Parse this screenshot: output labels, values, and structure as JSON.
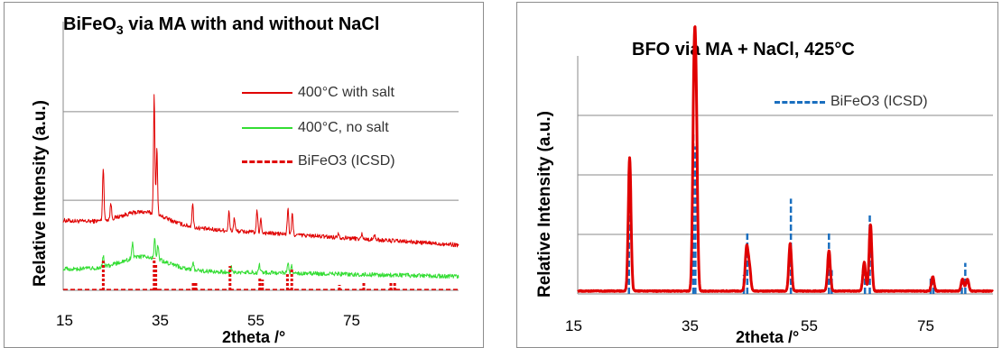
{
  "chart_data": [
    {
      "type": "line",
      "title": "BiFeO",
      "title_subscript": "3",
      "title_suffix": " via MA with and without NaCl",
      "xlabel": "2theta /°",
      "ylabel": "Relative Intensity (a.u.)",
      "xlim": [
        15,
        88
      ],
      "ylim": [
        0,
        100
      ],
      "xticks": [
        15,
        35,
        55,
        75
      ],
      "grid": true,
      "legend_position": "top-right",
      "series": [
        {
          "name": "400°C with salt",
          "color": "#e00000",
          "baseline": 26,
          "peaks": [
            [
              22.4,
              20
            ],
            [
              23.8,
              6
            ],
            [
              31.8,
              44
            ],
            [
              32.3,
              25
            ],
            [
              38.9,
              9
            ],
            [
              45.6,
              7
            ],
            [
              46.6,
              5
            ],
            [
              50.8,
              8
            ],
            [
              51.5,
              5
            ],
            [
              56.5,
              10
            ],
            [
              57.3,
              8
            ],
            [
              65.8,
              2
            ],
            [
              70.2,
              2
            ],
            [
              72.5,
              2
            ]
          ]
        },
        {
          "name": "400°C, no salt",
          "color": "#33dd33",
          "baseline": 8,
          "peaks": [
            [
              22.4,
              4
            ],
            [
              27.8,
              6
            ],
            [
              31.9,
              7
            ],
            [
              32.5,
              5
            ],
            [
              39.0,
              3
            ],
            [
              46.0,
              2
            ],
            [
              51.2,
              3
            ],
            [
              56.5,
              4
            ],
            [
              57.2,
              3
            ]
          ]
        },
        {
          "name": "BiFeO3 (ICSD)",
          "color": "#e00000",
          "style": "dashed",
          "sticks": [
            [
              22.4,
              11
            ],
            [
              31.8,
              12
            ],
            [
              32.1,
              10
            ],
            [
              39.0,
              3
            ],
            [
              39.5,
              3
            ],
            [
              45.8,
              9
            ],
            [
              51.3,
              5
            ],
            [
              51.8,
              4
            ],
            [
              56.4,
              6
            ],
            [
              57.2,
              8
            ],
            [
              66.0,
              2
            ],
            [
              70.5,
              3
            ],
            [
              75.5,
              3
            ],
            [
              76.2,
              3
            ]
          ]
        }
      ]
    },
    {
      "type": "line",
      "title": "BFO via MA + NaCl, 425°C",
      "xlabel": "2theta /°",
      "ylabel": "Relative Intensity (a.u.)",
      "xlim": [
        15,
        75
      ],
      "ylim": [
        0,
        100
      ],
      "xticks": [
        15,
        35,
        55,
        75
      ],
      "grid": true,
      "legend_position": "top-right",
      "series": [
        {
          "name": "",
          "color": "#e00000",
          "peaks": [
            [
              22.5,
              56
            ],
            [
              31.8,
              78
            ],
            [
              32.1,
              70
            ],
            [
              39.4,
              18
            ],
            [
              39.8,
              10
            ],
            [
              45.7,
              20
            ],
            [
              51.3,
              17
            ],
            [
              56.4,
              12
            ],
            [
              57.3,
              28
            ],
            [
              66.3,
              6
            ],
            [
              70.6,
              5
            ],
            [
              71.3,
              5
            ]
          ]
        },
        {
          "name": "BiFeO3 (ICSD)",
          "color": "#1a6fbf",
          "style": "dashed",
          "sticks": [
            [
              22.4,
              53
            ],
            [
              31.7,
              67
            ],
            [
              32.0,
              62
            ],
            [
              39.0,
              8
            ],
            [
              39.5,
              26
            ],
            [
              45.8,
              40
            ],
            [
              51.3,
              26
            ],
            [
              51.7,
              10
            ],
            [
              56.5,
              12
            ],
            [
              57.2,
              34
            ],
            [
              66.0,
              7
            ],
            [
              66.4,
              7
            ],
            [
              70.5,
              4
            ],
            [
              71.0,
              13
            ]
          ]
        }
      ]
    }
  ]
}
